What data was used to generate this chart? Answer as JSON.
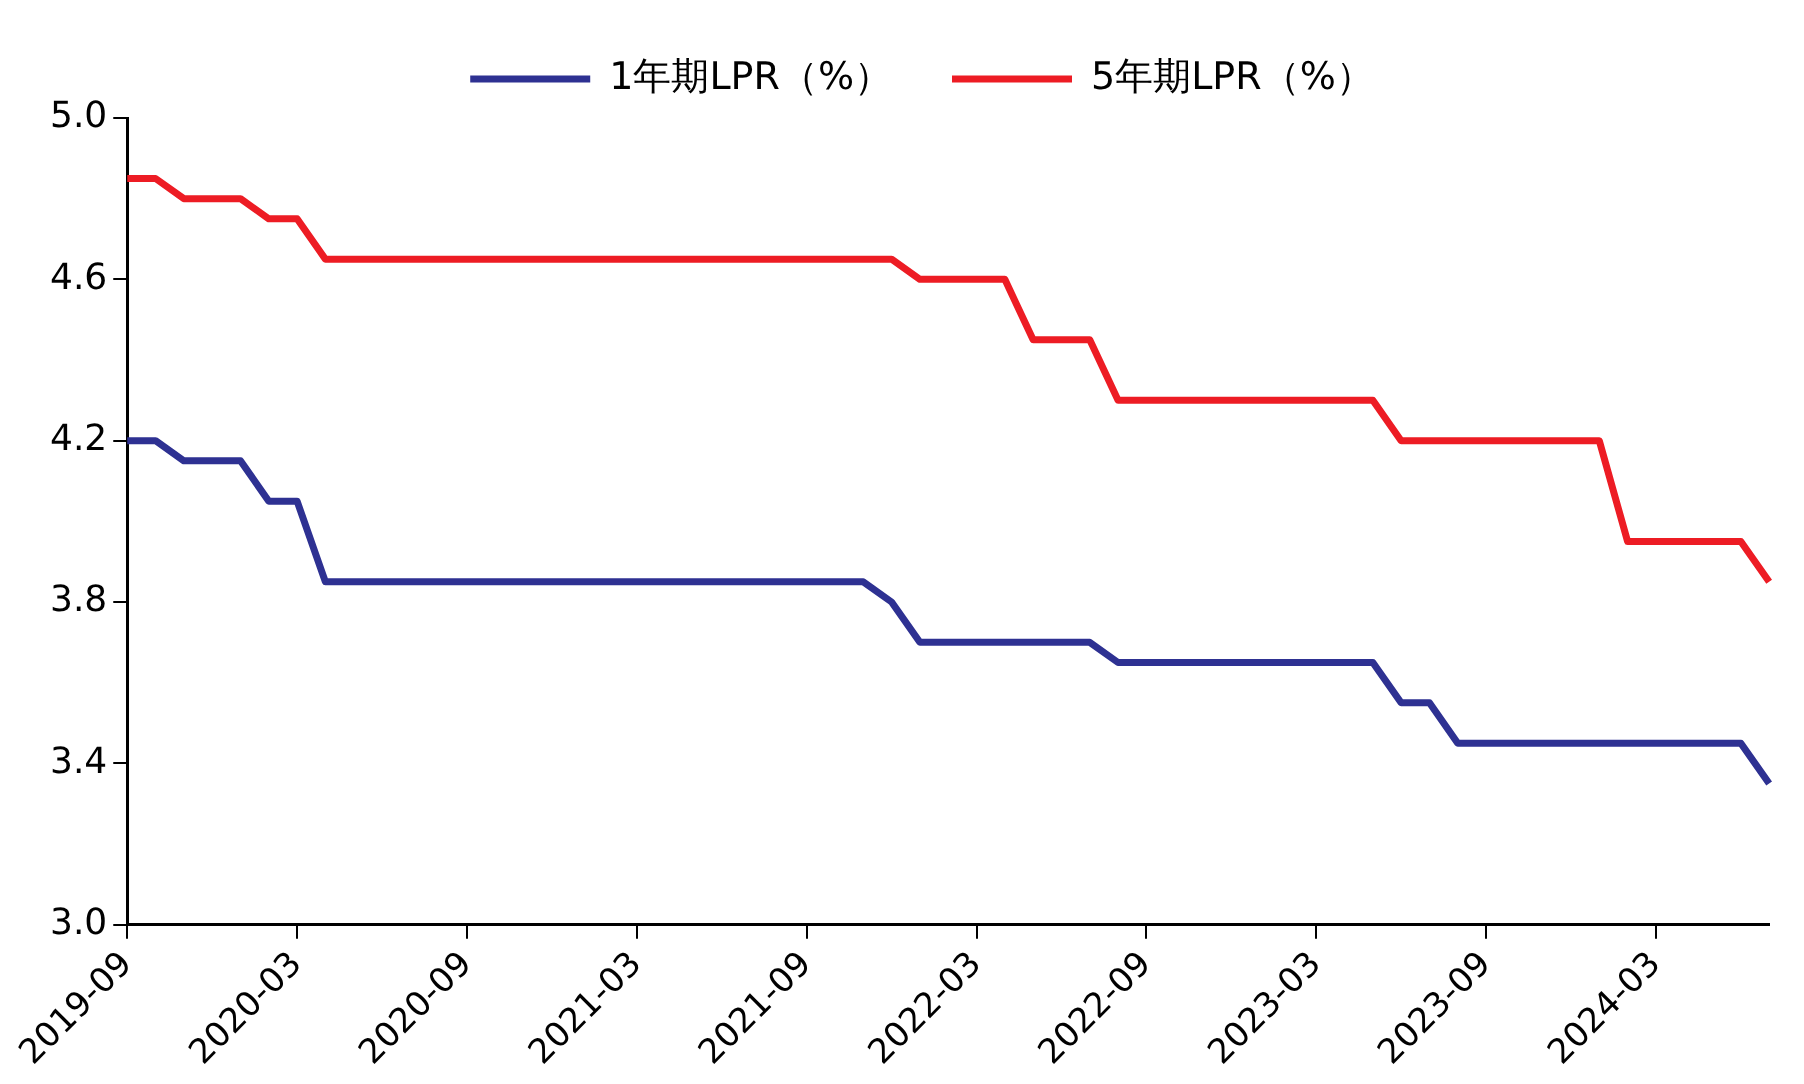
{
  "chart_data": {
    "type": "line",
    "categories": [
      "2019-09",
      null,
      null,
      null,
      null,
      null,
      "2020-03",
      null,
      null,
      null,
      null,
      null,
      "2020-09",
      null,
      null,
      null,
      null,
      null,
      "2021-03",
      null,
      null,
      null,
      null,
      null,
      "2021-09",
      null,
      null,
      null,
      null,
      null,
      "2022-03",
      null,
      null,
      null,
      null,
      null,
      "2022-09",
      null,
      null,
      null,
      null,
      null,
      "2023-03",
      null,
      null,
      null,
      null,
      null,
      "2023-09",
      null,
      null,
      null,
      null,
      null,
      "2024-03",
      null,
      null,
      null,
      null
    ],
    "series": [
      {
        "name": "1年期LPR（%）",
        "color": "#2e3192",
        "values": [
          4.2,
          4.2,
          4.15,
          4.15,
          4.15,
          4.05,
          4.05,
          3.85,
          3.85,
          3.85,
          3.85,
          3.85,
          3.85,
          3.85,
          3.85,
          3.85,
          3.85,
          3.85,
          3.85,
          3.85,
          3.85,
          3.85,
          3.85,
          3.85,
          3.85,
          3.85,
          3.85,
          3.8,
          3.7,
          3.7,
          3.7,
          3.7,
          3.7,
          3.7,
          3.7,
          3.65,
          3.65,
          3.65,
          3.65,
          3.65,
          3.65,
          3.65,
          3.65,
          3.65,
          3.65,
          3.55,
          3.55,
          3.45,
          3.45,
          3.45,
          3.45,
          3.45,
          3.45,
          3.45,
          3.45,
          3.45,
          3.45,
          3.45,
          3.35
        ]
      },
      {
        "name": "5年期LPR（%）",
        "color": "#ed1c24",
        "values": [
          4.85,
          4.85,
          4.8,
          4.8,
          4.8,
          4.75,
          4.75,
          4.65,
          4.65,
          4.65,
          4.65,
          4.65,
          4.65,
          4.65,
          4.65,
          4.65,
          4.65,
          4.65,
          4.65,
          4.65,
          4.65,
          4.65,
          4.65,
          4.65,
          4.65,
          4.65,
          4.65,
          4.65,
          4.6,
          4.6,
          4.6,
          4.6,
          4.45,
          4.45,
          4.45,
          4.3,
          4.3,
          4.3,
          4.3,
          4.3,
          4.3,
          4.3,
          4.3,
          4.3,
          4.3,
          4.2,
          4.2,
          4.2,
          4.2,
          4.2,
          4.2,
          4.2,
          4.2,
          3.95,
          3.95,
          3.95,
          3.95,
          3.95,
          3.85
        ]
      }
    ],
    "ylim": [
      3.0,
      5.0
    ],
    "yticks": [
      {
        "value": 3.0,
        "label": "3.0"
      },
      {
        "value": 3.4,
        "label": "3.4"
      },
      {
        "value": 3.8,
        "label": "3.8"
      },
      {
        "value": 4.2,
        "label": "4.2"
      },
      {
        "value": 4.6,
        "label": "4.6"
      },
      {
        "value": 5.0,
        "label": "5.0"
      }
    ],
    "grid": false,
    "legend": "top",
    "marker": "none",
    "line_style": "solid"
  }
}
